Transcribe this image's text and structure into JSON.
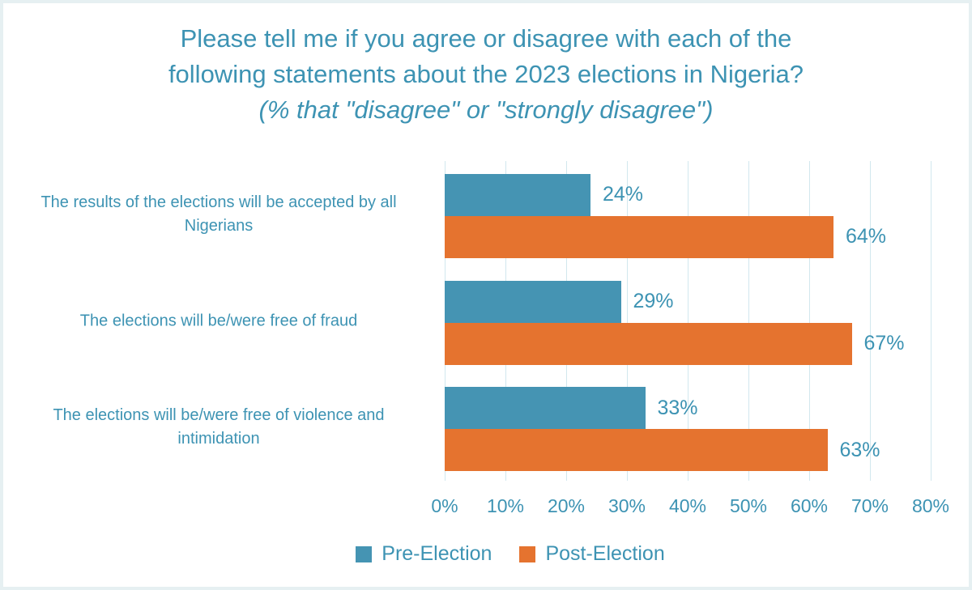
{
  "chart_data": {
    "type": "bar",
    "orientation": "horizontal",
    "title": "Please tell me if you agree or disagree with each of the following statements about the 2023 elections in Nigeria?",
    "title_lines": [
      "Please tell me if you agree or disagree with each of the",
      "following statements about the 2023 elections in Nigeria?"
    ],
    "subtitle": "(% that \"disagree\" or \"strongly disagree\")",
    "categories": [
      "The results of the elections will be accepted by all Nigerians",
      "The elections will be/were free of fraud",
      "The elections will be/were free of violence and intimidation"
    ],
    "series": [
      {
        "name": "Pre-Election",
        "color": "#4594b3",
        "values": [
          24,
          29,
          33
        ]
      },
      {
        "name": "Post-Election",
        "color": "#e5732f",
        "values": [
          64,
          67,
          63
        ]
      }
    ],
    "value_suffix": "%",
    "xlim": [
      0,
      80
    ],
    "x_ticks": [
      "0%",
      "10%",
      "20%",
      "30%",
      "40%",
      "50%",
      "60%",
      "70%",
      "80%"
    ],
    "grid": true,
    "legend_position": "bottom"
  },
  "colors": {
    "text": "#3d93b3",
    "gridline": "#d2e7ee",
    "frame_border": "#e6f0f2",
    "background": "#ffffff"
  }
}
